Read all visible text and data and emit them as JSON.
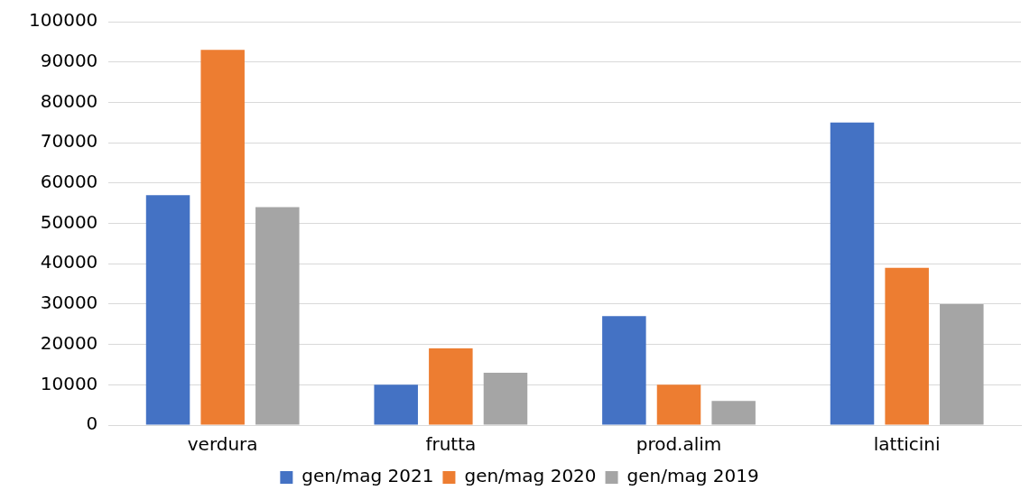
{
  "chart_data": {
    "type": "bar",
    "categories": [
      "verdura",
      "frutta",
      "prod.alim",
      "latticini"
    ],
    "series": [
      {
        "name": "gen/mag 2021",
        "color": "#4472c4",
        "values": [
          57000,
          10000,
          27000,
          75000
        ]
      },
      {
        "name": "gen/mag 2020",
        "color": "#ed7d31",
        "values": [
          93000,
          19000,
          10000,
          39000
        ]
      },
      {
        "name": "gen/mag 2019",
        "color": "#a5a5a5",
        "values": [
          54000,
          13000,
          6000,
          30000
        ]
      }
    ],
    "ylim": [
      0,
      100000
    ],
    "yticks": [
      0,
      10000,
      20000,
      30000,
      40000,
      50000,
      60000,
      70000,
      80000,
      90000,
      100000
    ],
    "grid": "y",
    "legend": "bottom"
  }
}
